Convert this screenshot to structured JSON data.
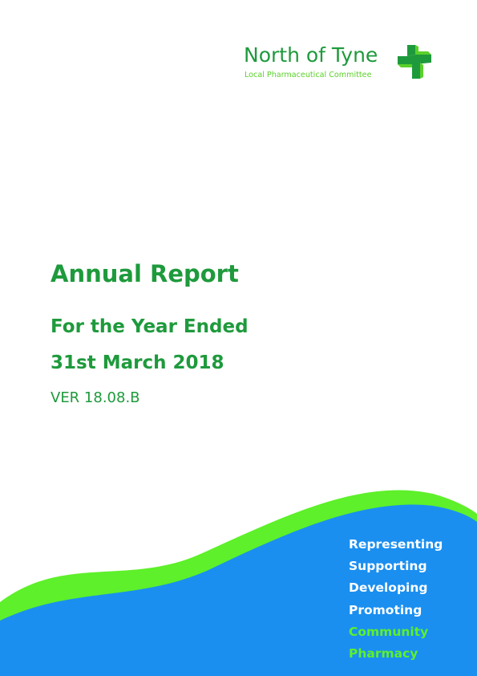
{
  "logo": {
    "name": "North of Tyne",
    "subtitle": "Local Pharmaceutical Committee",
    "icon": "pharmacy-cross-icon",
    "colors": {
      "dark_green": "#1e9a3c",
      "light_green": "#5ad12a"
    }
  },
  "report": {
    "title": "Annual Report",
    "subtitle_line1": "For the Year Ended",
    "subtitle_line2": "31st March 2018",
    "version": "VER 18.08.B"
  },
  "footer": {
    "colors": {
      "blue": "#1a8ff0",
      "green": "#5ef02a"
    },
    "taglines": [
      {
        "text": "Representing"
      },
      {
        "text": "Supporting"
      },
      {
        "text": "Developing"
      },
      {
        "text": "Promoting"
      },
      {
        "text": "Community"
      },
      {
        "text": "Pharmacy"
      }
    ]
  }
}
